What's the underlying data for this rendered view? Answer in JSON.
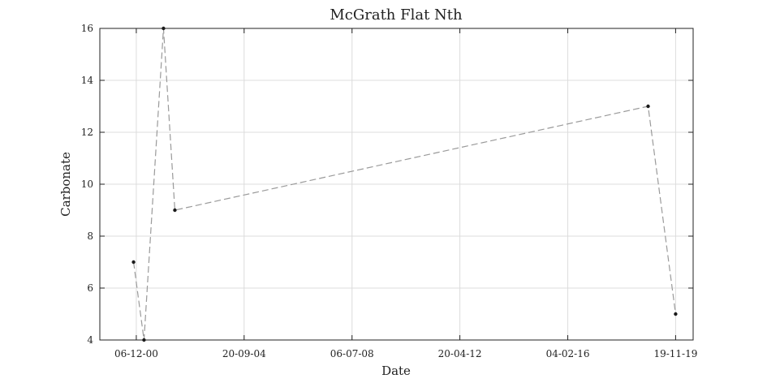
{
  "chart_data": {
    "type": "line",
    "title": "McGrath Flat Nth",
    "xlabel": "Date",
    "ylabel": "Carbonate",
    "x_ticks": [
      "06-12-00",
      "20-09-04",
      "06-07-08",
      "20-04-12",
      "04-02-16",
      "19-11-19"
    ],
    "x_tick_dates": [
      "2000-12-06",
      "2004-09-20",
      "2008-07-06",
      "2012-04-20",
      "2016-02-04",
      "2019-11-19"
    ],
    "xlim": [
      "1999-08-26",
      "2020-07-01"
    ],
    "y_ticks": [
      4,
      6,
      8,
      10,
      12,
      14,
      16
    ],
    "ylim": [
      4,
      16
    ],
    "grid": true,
    "series": [
      {
        "x": [
          "2000-11-01",
          "2001-03-15",
          "2001-11-20",
          "2002-04-15",
          "2018-12-01",
          "2019-11-19"
        ],
        "y": [
          7,
          4,
          16,
          9,
          13,
          5
        ]
      }
    ]
  }
}
